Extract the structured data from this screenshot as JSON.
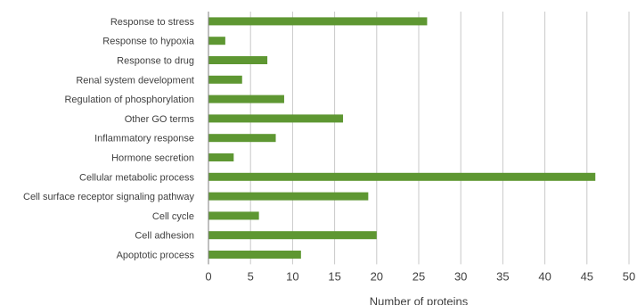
{
  "chart_data": {
    "type": "bar",
    "orientation": "horizontal",
    "categories": [
      "Response to stress",
      "Response to hypoxia",
      "Response to drug",
      "Renal system development",
      "Regulation of phosphorylation",
      "Other GO terms",
      "Inflammatory response",
      "Hormone secretion",
      "Cellular metabolic process",
      "Cell surface receptor signaling pathway",
      "Cell cycle",
      "Cell adhesion",
      "Apoptotic process"
    ],
    "values": [
      26,
      2,
      7,
      4,
      9,
      16,
      8,
      3,
      46,
      19,
      6,
      20,
      11
    ],
    "xlabel": "Number of proteins",
    "xlim": [
      0,
      50
    ],
    "xticks": [
      "0",
      "5",
      "10",
      "15",
      "20",
      "25",
      "30",
      "35",
      "40",
      "45",
      "50"
    ],
    "grid": "vertical",
    "legend": "none",
    "bar_color": "#5e9732",
    "grid_color": "#c8c8c8",
    "text_color": "#404040"
  }
}
